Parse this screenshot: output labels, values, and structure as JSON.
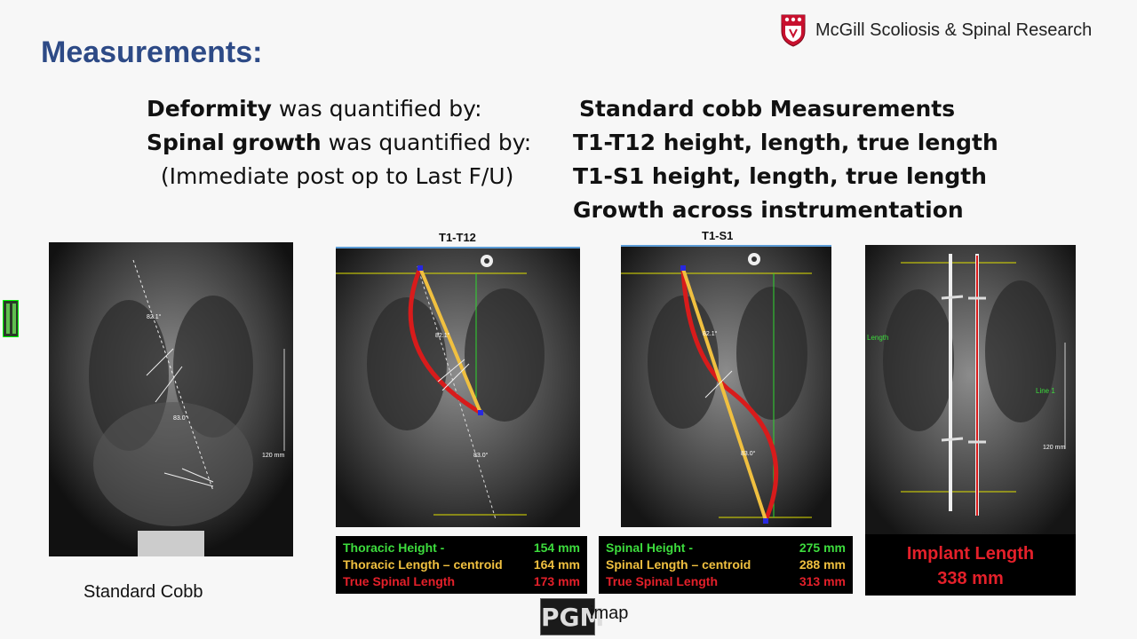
{
  "header": {
    "title": "Measurements:",
    "org_name": "McGill Scoliosis & Spinal Research"
  },
  "left_column": [
    {
      "bold": "Deformity",
      "rest": " was quantified by:"
    },
    {
      "bold": "Spinal growth",
      "rest": " was quantified by:"
    },
    {
      "bold": "",
      "rest": "  (Immediate post op to Last F/U)"
    }
  ],
  "right_column": [
    "Standard cobb Measurements",
    "T1-T12 height, length, true length",
    "T1-S1 height, length, true length",
    "Growth across instrumentation"
  ],
  "panels": {
    "cobb": {
      "angle_top": "82.1°",
      "angle_bottom": "83.0°",
      "scale": "120 mm",
      "caption_below": "Standard Cobb"
    },
    "t1t12": {
      "caption": "T1-T12",
      "angle_top": "82.1°",
      "angle_bottom": "83.0°",
      "stats": [
        {
          "label": "Thoracic Height -",
          "value": "154 mm",
          "color": "#3ddc3d"
        },
        {
          "label": "Thoracic Length – centroid",
          "value": "164 mm",
          "color": "#f0c040"
        },
        {
          "label": "True Spinal Length",
          "value": "173 mm",
          "color": "#e4202a"
        }
      ]
    },
    "t1s1": {
      "caption": "T1-S1",
      "angle_top": "82.1°",
      "angle_bottom": "83.0°",
      "stats": [
        {
          "label": "Spinal Height -",
          "value": "275 mm",
          "color": "#3ddc3d"
        },
        {
          "label": "Spinal Length – centroid",
          "value": "288 mm",
          "color": "#f0c040"
        },
        {
          "label": "True Spinal Length",
          "value": "313 mm",
          "color": "#e4202a"
        }
      ]
    },
    "implant": {
      "label": "Implant Length",
      "value": "338 mm",
      "side_text": "Length",
      "line_label": "Line 1",
      "scale": "120 mm"
    }
  },
  "footer": {
    "logo_text": "PGM",
    "logo_sub": "imap"
  },
  "colors": {
    "title": "#2d4a86",
    "green": "#3ddc3d",
    "yellow": "#f0c040",
    "red": "#e4202a"
  }
}
